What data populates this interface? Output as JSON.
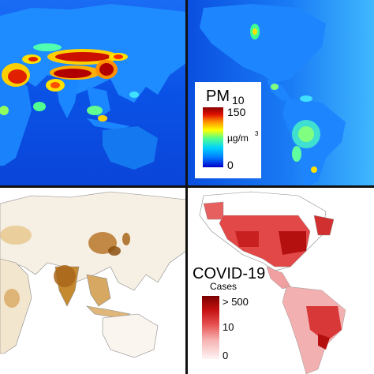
{
  "pm10_legend": {
    "title_main": "PM",
    "title_sub": "10",
    "max_label": "150",
    "unit_base": "µg/m",
    "unit_exp": "3",
    "min_label": "0",
    "colors": [
      "#0000c8",
      "#0078ff",
      "#00d0ff",
      "#50ff90",
      "#ffff00",
      "#ff9000",
      "#e01000",
      "#8a0000"
    ]
  },
  "covid_legend": {
    "title": "COVID-19",
    "subtitle": "Cases",
    "max_label": "> 500",
    "mid_label": "10",
    "min_label": "0",
    "colors": [
      "#fff4f4",
      "#f6b2b2",
      "#e65050",
      "#c41010",
      "#7a0000"
    ]
  },
  "panel_colors": {
    "ocean_pm10": "#0b56e8",
    "land_low_pm10": "#1f8fff",
    "population_land": "#f5efe6",
    "population_dense": "#b0701a",
    "covid_land_none": "#ffffff"
  }
}
